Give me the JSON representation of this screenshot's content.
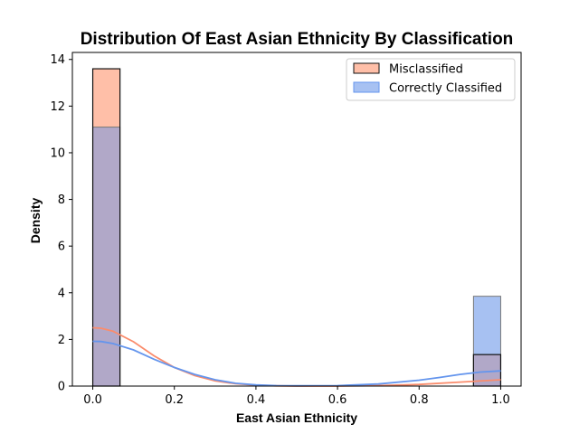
{
  "chart_data": {
    "type": "histogram",
    "title": "Distribution Of East Asian Ethnicity By Classification",
    "xlabel": "East Asian Ethnicity",
    "ylabel": "Density",
    "xlim": [
      -0.05,
      1.05
    ],
    "ylim": [
      0,
      14.3
    ],
    "x_ticks": [
      0.0,
      0.2,
      0.4,
      0.6,
      0.8,
      1.0
    ],
    "x_tick_labels": [
      "0.0",
      "0.2",
      "0.4",
      "0.6",
      "0.8",
      "1.0"
    ],
    "y_ticks": [
      0,
      2,
      4,
      6,
      8,
      10,
      12,
      14
    ],
    "y_tick_labels": [
      "0",
      "2",
      "4",
      "6",
      "8",
      "10",
      "12",
      "14"
    ],
    "bin_width": 0.0667,
    "grid": false,
    "legend_placement": "top-right",
    "series": [
      {
        "name": "Misclassified",
        "color": "#fa8c6c",
        "fill": "#ffbfa8",
        "bars": [
          {
            "x_start": 0.0,
            "x_end": 0.0667,
            "density": 13.6
          },
          {
            "x_start": 0.9333,
            "x_end": 1.0,
            "density": 1.35
          }
        ],
        "kde": [
          [
            0.0,
            2.5
          ],
          [
            0.02,
            2.48
          ],
          [
            0.05,
            2.35
          ],
          [
            0.1,
            1.9
          ],
          [
            0.15,
            1.3
          ],
          [
            0.2,
            0.8
          ],
          [
            0.25,
            0.45
          ],
          [
            0.3,
            0.22
          ],
          [
            0.35,
            0.1
          ],
          [
            0.4,
            0.04
          ],
          [
            0.45,
            0.01
          ],
          [
            0.5,
            0.0
          ],
          [
            0.6,
            0.0
          ],
          [
            0.7,
            0.02
          ],
          [
            0.8,
            0.07
          ],
          [
            0.9,
            0.17
          ],
          [
            1.0,
            0.27
          ]
        ]
      },
      {
        "name": "Correctly Classified",
        "color": "#6495ed",
        "fill": "#a7c1f2",
        "bars": [
          {
            "x_start": 0.0,
            "x_end": 0.0667,
            "density": 11.1
          },
          {
            "x_start": 0.9333,
            "x_end": 1.0,
            "density": 3.85
          }
        ],
        "kde": [
          [
            0.0,
            1.92
          ],
          [
            0.02,
            1.91
          ],
          [
            0.05,
            1.82
          ],
          [
            0.1,
            1.55
          ],
          [
            0.15,
            1.15
          ],
          [
            0.2,
            0.8
          ],
          [
            0.25,
            0.5
          ],
          [
            0.3,
            0.27
          ],
          [
            0.35,
            0.12
          ],
          [
            0.4,
            0.05
          ],
          [
            0.45,
            0.02
          ],
          [
            0.5,
            0.01
          ],
          [
            0.6,
            0.02
          ],
          [
            0.7,
            0.09
          ],
          [
            0.8,
            0.25
          ],
          [
            0.85,
            0.37
          ],
          [
            0.9,
            0.5
          ],
          [
            0.95,
            0.6
          ],
          [
            1.0,
            0.65
          ]
        ]
      }
    ],
    "overlap_fill": "#b1a8c8"
  }
}
